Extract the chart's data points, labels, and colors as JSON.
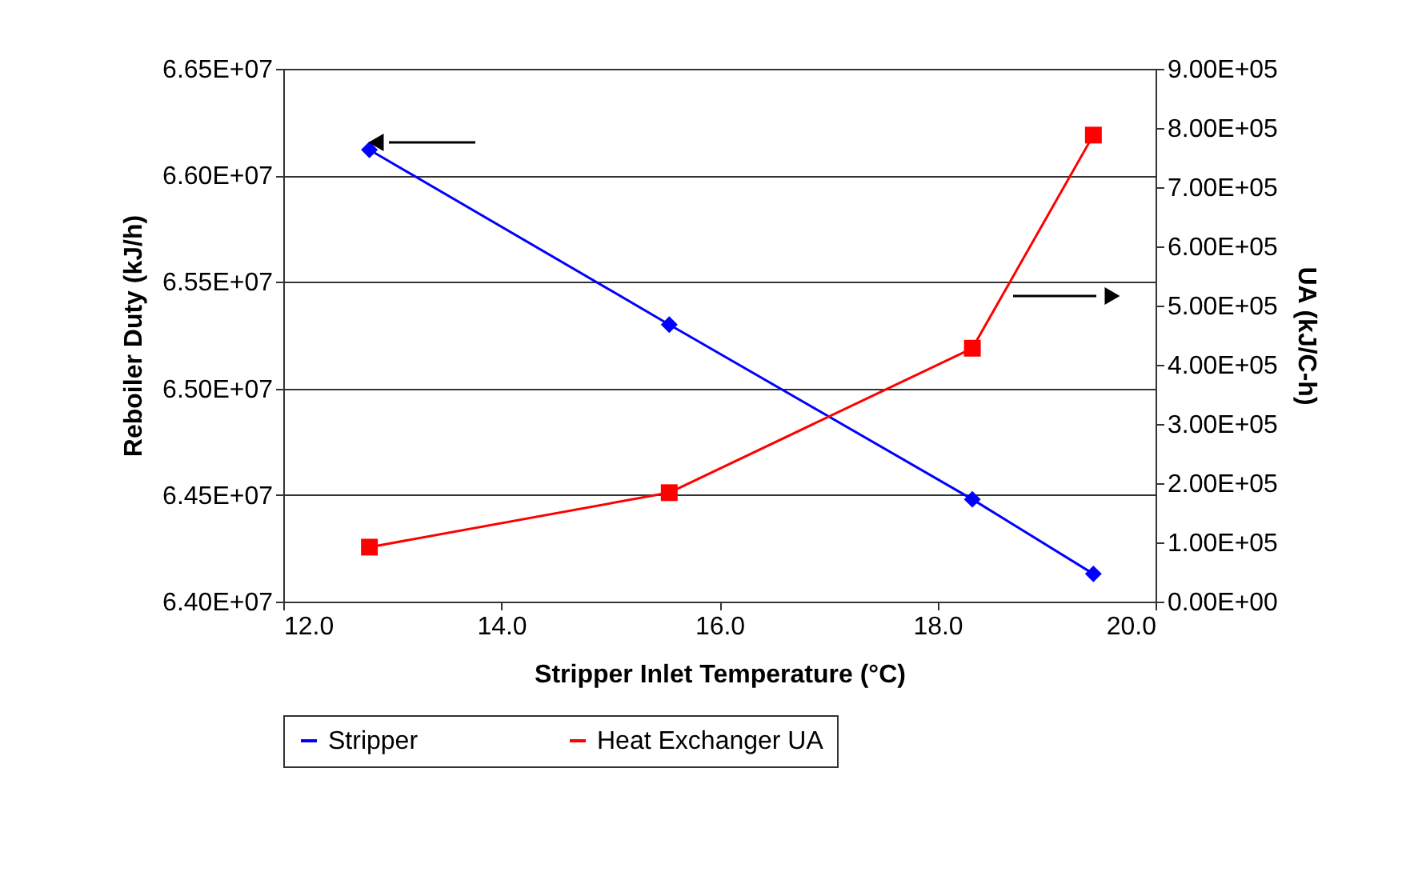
{
  "chart_data": {
    "type": "line",
    "xlabel": "Stripper Inlet Temperature (°C)",
    "ylabel": "Reboiler Duty (kJ/h)",
    "y2label": "UA (kJ/C-h)",
    "xlim": [
      12,
      20
    ],
    "xticks": [
      {
        "value": 12,
        "label": "12.0"
      },
      {
        "value": 14,
        "label": "14.0"
      },
      {
        "value": 16,
        "label": "16.0"
      },
      {
        "value": 18,
        "label": "18.0"
      },
      {
        "value": 20,
        "label": "20.0"
      }
    ],
    "ylim": [
      64000000,
      66500000
    ],
    "yticks": [
      {
        "value": 64000000,
        "label": "6.40E+07"
      },
      {
        "value": 64500000,
        "label": "6.45E+07"
      },
      {
        "value": 65000000,
        "label": "6.50E+07"
      },
      {
        "value": 65500000,
        "label": "6.55E+07"
      },
      {
        "value": 66000000,
        "label": "6.60E+07"
      },
      {
        "value": 66500000,
        "label": "6.65E+07"
      }
    ],
    "y2lim": [
      0,
      900000
    ],
    "y2ticks": [
      {
        "value": 0,
        "label": "0.00E+00"
      },
      {
        "value": 100000,
        "label": "1.00E+05"
      },
      {
        "value": 200000,
        "label": "2.00E+05"
      },
      {
        "value": 300000,
        "label": "3.00E+05"
      },
      {
        "value": 400000,
        "label": "4.00E+05"
      },
      {
        "value": 500000,
        "label": "5.00E+05"
      },
      {
        "value": 600000,
        "label": "6.00E+05"
      },
      {
        "value": 700000,
        "label": "7.00E+05"
      },
      {
        "value": 800000,
        "label": "8.00E+05"
      },
      {
        "value": 900000,
        "label": "9.00E+05"
      }
    ],
    "x": [
      12.79,
      15.54,
      18.32,
      19.43
    ],
    "series": [
      {
        "name": "Stripper",
        "color": "#0000ff",
        "marker": "diamond",
        "values": [
          66120000,
          65300000,
          64480000,
          64130000
        ]
      },
      {
        "name": "Heat Exchanger UA",
        "color": "#ff0000",
        "marker": "square",
        "axis": "y2",
        "values": [
          92000,
          184000,
          428000,
          788000
        ]
      }
    ],
    "grid": "y",
    "legend": "bottom"
  }
}
